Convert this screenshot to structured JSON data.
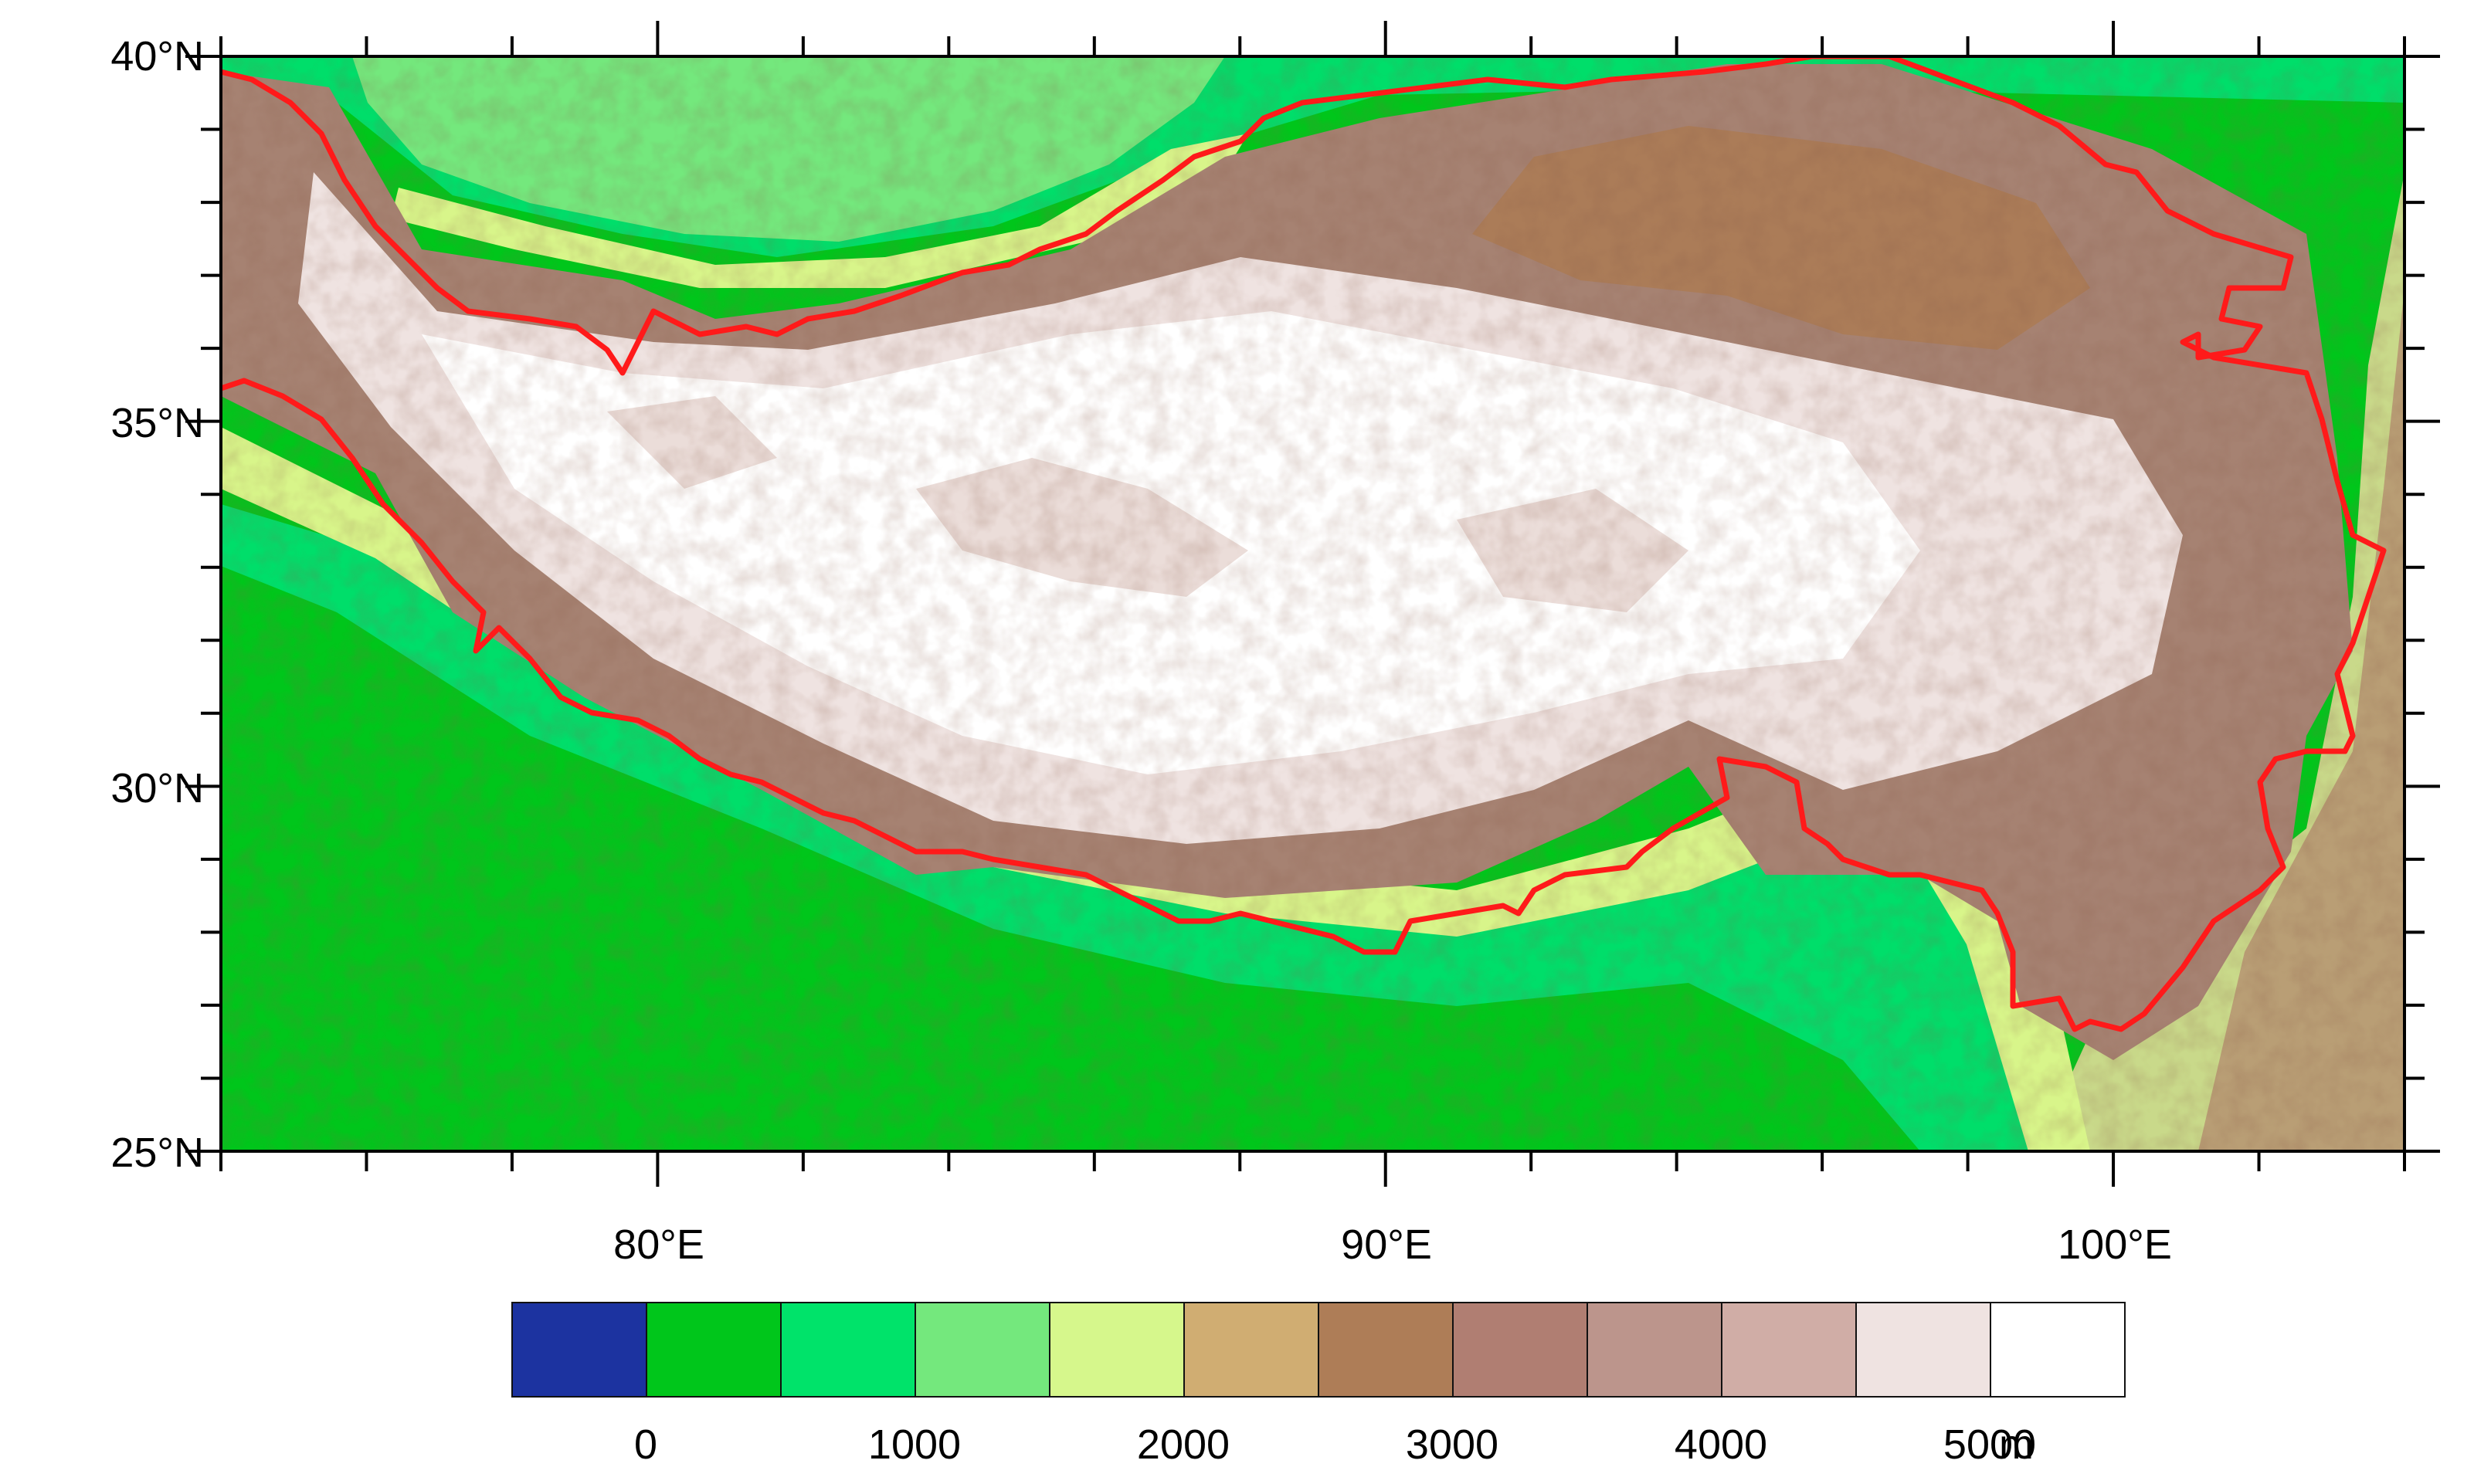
{
  "map": {
    "lat_labels": [
      "40°N",
      "35°N",
      "30°N",
      "25°N"
    ],
    "lon_labels": [
      "80°E",
      "90°E",
      "100°E"
    ],
    "lat_range": [
      25,
      40
    ],
    "lon_range": [
      74,
      104
    ],
    "boundary_color": "#ff1a1a",
    "terrain_colors": {
      "lowland": "#00c61b",
      "foothill": "#00de6a",
      "basin": "#74e87d",
      "mid": "#d8f58a",
      "upper": "#a87a55",
      "plateau": "#f4eeee"
    }
  },
  "colorbar": {
    "colors": [
      "#1c33a0",
      "#00c61b",
      "#00e36a",
      "#74e87d",
      "#d6f78c",
      "#d0ad72",
      "#ae7d57",
      "#b07e72",
      "#bc958c",
      "#d0ada6",
      "#efe3e1",
      "#ffffff"
    ],
    "labels": [
      "0",
      "1000",
      "2000",
      "3000",
      "4000",
      "5000"
    ],
    "unit": "m"
  }
}
